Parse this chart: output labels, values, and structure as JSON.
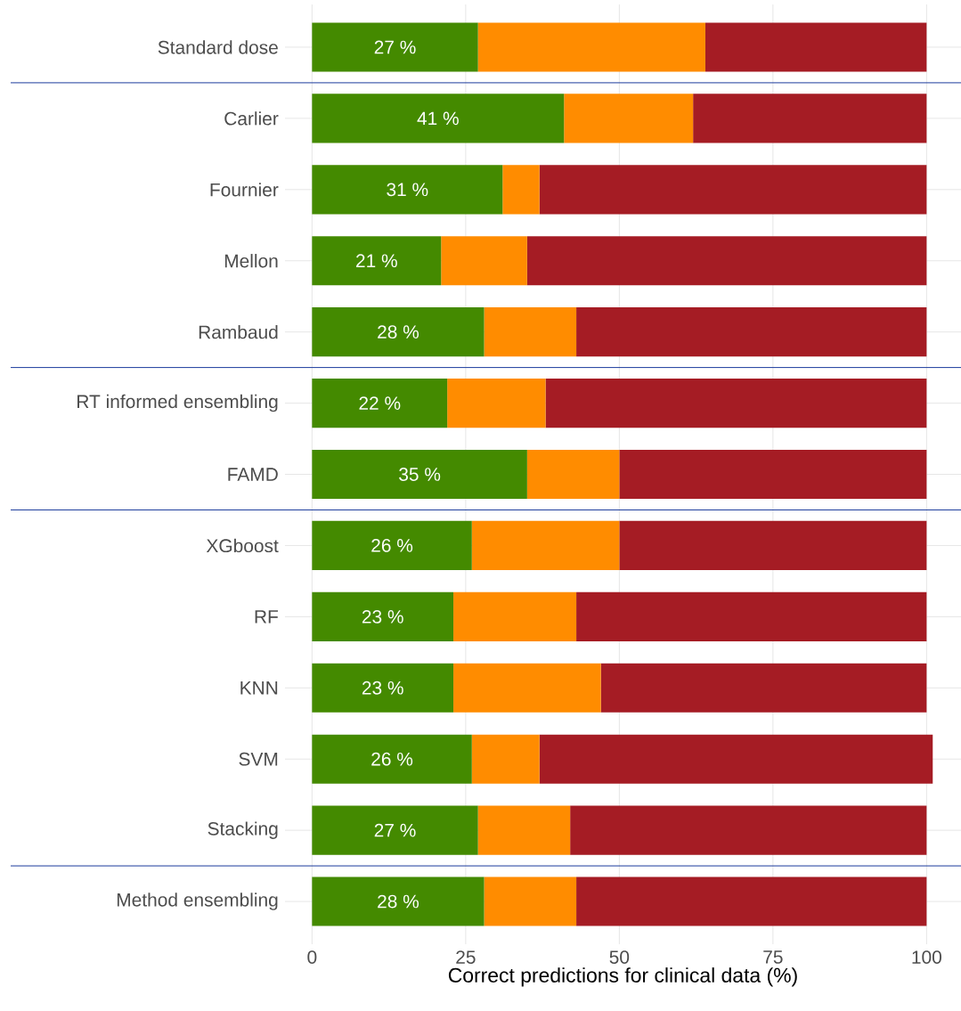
{
  "chart_data": {
    "type": "bar",
    "orientation": "horizontal",
    "stacked": true,
    "xlabel": "Correct predictions for clinical data (%)",
    "categories": [
      "Standard dose",
      "Carlier",
      "Fournier",
      "Mellon",
      "Rambaud",
      "RT informed ensembling",
      "FAMD",
      "XGboost",
      "RF",
      "KNN",
      "SVM",
      "Stacking",
      "Method ensembling"
    ],
    "series": [
      {
        "color": "#448a00",
        "values": [
          27,
          41,
          31,
          21,
          28,
          22,
          35,
          26,
          23,
          23,
          26,
          27,
          28
        ],
        "value_labels": [
          "27 %",
          "41 %",
          "31 %",
          "21 %",
          "28 %",
          "22 %",
          "35 %",
          "26 %",
          "23 %",
          "23 %",
          "26 %",
          "27 %",
          "28 %"
        ]
      },
      {
        "color": "#ff8c00",
        "values": [
          37,
          21,
          6,
          14,
          15,
          16,
          15,
          24,
          20,
          24,
          11,
          15,
          15
        ]
      },
      {
        "color": "#a51c24",
        "values": [
          36,
          38,
          63,
          65,
          57,
          62,
          50,
          50,
          57,
          53,
          64,
          58,
          57
        ]
      }
    ],
    "xlim": [
      -4.4,
      105.6
    ],
    "xticks": [
      0,
      25,
      50,
      75,
      100
    ],
    "grid": true
  }
}
